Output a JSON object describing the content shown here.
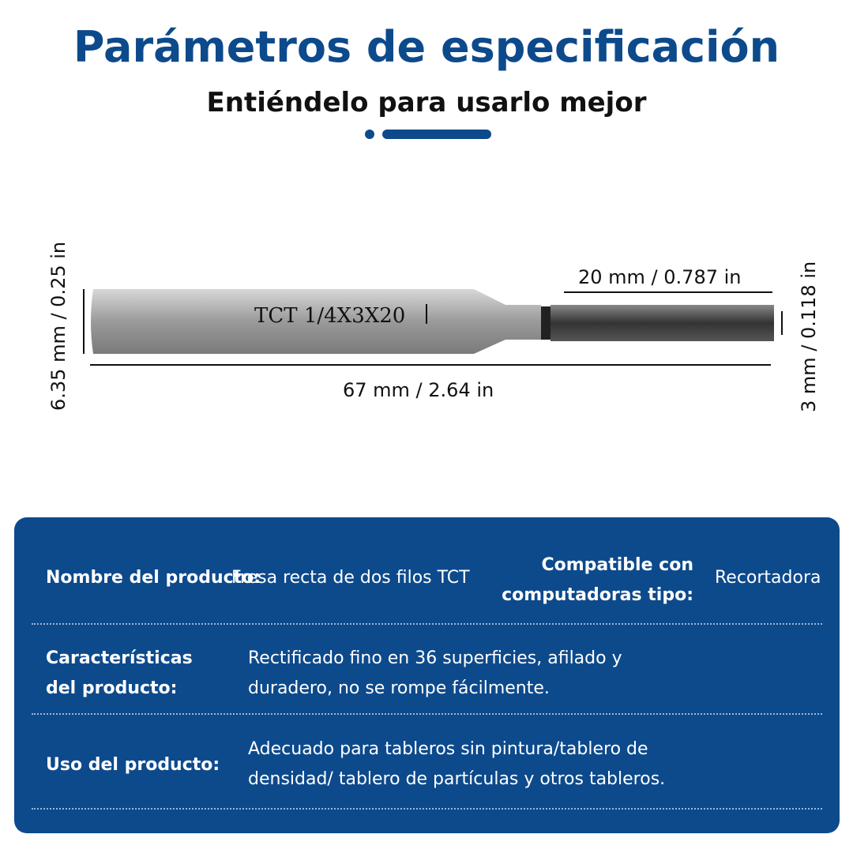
{
  "header": {
    "title": "Parámetros de especificación",
    "subtitle": "Entiéndelo para usarlo mejor"
  },
  "drawing": {
    "engraving": "TCT 1/4X3X20",
    "shank_diameter": "6.35 mm / 0.25 in",
    "cutting_length": "20 mm / 0.787 in",
    "total_length": "67 mm / 2.64 in",
    "cutting_diameter": "3 mm / 0.118 in"
  },
  "table": {
    "rows": [
      [
        "Nombre del producto:",
        "Fresa recta de dos filos TCT",
        "Compatible con computadoras tipo:",
        "Recortadora"
      ],
      [
        "Características del producto:",
        "Rectificado fino en 36 superficies, afilado y duradero, no se rompe fácilmente."
      ],
      [
        "Uso del producto:",
        "Adecuado para tableros sin pintura/tablero de densidad/ tablero de partículas y otros tableros."
      ]
    ]
  }
}
